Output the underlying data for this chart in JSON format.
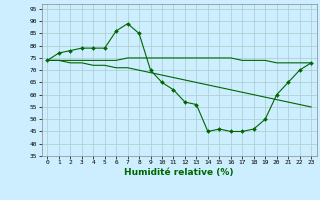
{
  "xlabel": "Humidité relative (%)",
  "bg_color": "#cceeff",
  "grid_color": "#aacccc",
  "line_color": "#006600",
  "xlim": [
    -0.5,
    23.5
  ],
  "ylim": [
    35,
    97
  ],
  "yticks": [
    35,
    40,
    45,
    50,
    55,
    60,
    65,
    70,
    75,
    80,
    85,
    90,
    95
  ],
  "xticks": [
    0,
    1,
    2,
    3,
    4,
    5,
    6,
    7,
    8,
    9,
    10,
    11,
    12,
    13,
    14,
    15,
    16,
    17,
    18,
    19,
    20,
    21,
    22,
    23
  ],
  "series1": [
    74,
    77,
    78,
    79,
    79,
    79,
    86,
    89,
    85,
    70,
    65,
    62,
    57,
    56,
    45,
    46,
    45,
    45,
    46,
    50,
    60,
    65,
    70,
    73
  ],
  "series2": [
    74,
    74,
    74,
    74,
    74,
    74,
    74,
    75,
    75,
    75,
    75,
    75,
    75,
    75,
    75,
    75,
    75,
    74,
    74,
    74,
    73,
    73,
    73,
    73
  ],
  "series3": [
    74,
    74,
    73,
    73,
    72,
    72,
    71,
    71,
    70,
    69,
    68,
    67,
    66,
    65,
    64,
    63,
    62,
    61,
    60,
    59,
    58,
    57,
    56,
    55
  ]
}
